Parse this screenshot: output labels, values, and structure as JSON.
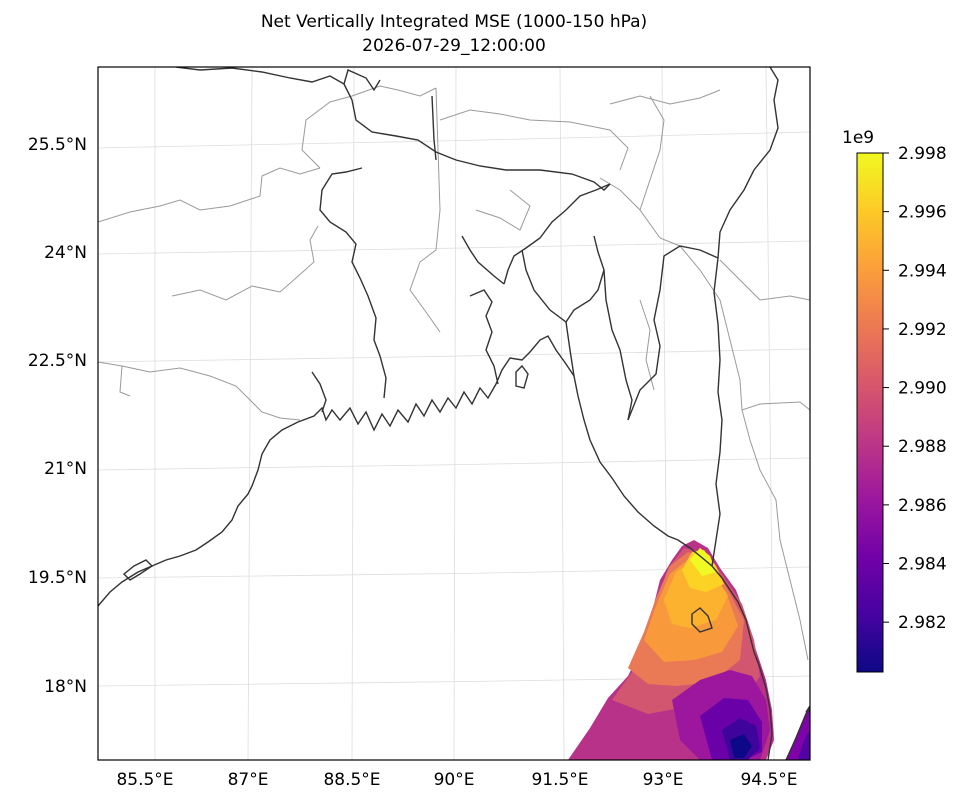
{
  "title": {
    "line1": "Net Vertically Integrated MSE (1000-150 hPa)",
    "line2": "2026-07-29_12:00:00"
  },
  "map": {
    "lon_ticks": [
      "85.5°E",
      "87°E",
      "88.5°E",
      "90°E",
      "91.5°E",
      "93°E",
      "94.5°E"
    ],
    "lat_ticks": [
      "25.5°N",
      "24°N",
      "22.5°N",
      "21°N",
      "19.5°N",
      "18°N"
    ],
    "extent": {
      "lon": [
        84.85,
        95.1
      ],
      "lat": [
        17.0,
        26.9
      ]
    },
    "projection": "lambert-conformal",
    "gridlines": true,
    "field": {
      "variable": "Net vertically integrated moist static energy",
      "region": "northern Bay of Bengal off the Myanmar (Rakhine) coast",
      "range": [
        2980300000.0,
        2998000000.0
      ],
      "max_near_lon_lat": [
        93.3,
        19.7
      ],
      "min_near_lon_lat": [
        94.2,
        17.4
      ]
    }
  },
  "colorbar": {
    "exponent_label": "1e9",
    "tick_labels": [
      "2.998",
      "2.996",
      "2.994",
      "2.992",
      "2.990",
      "2.988",
      "2.986",
      "2.984",
      "2.982"
    ],
    "tick_values": [
      2.998,
      2.996,
      2.994,
      2.992,
      2.99,
      2.988,
      2.986,
      2.984,
      2.982
    ],
    "range": [
      2.9803,
      2.998
    ],
    "colormap": "plasma",
    "colors": [
      "#0d0887",
      "#46039f",
      "#7201a8",
      "#9c179e",
      "#bd3786",
      "#d8576b",
      "#ed7953",
      "#fb9f3a",
      "#fdca26",
      "#f0f921"
    ]
  }
}
